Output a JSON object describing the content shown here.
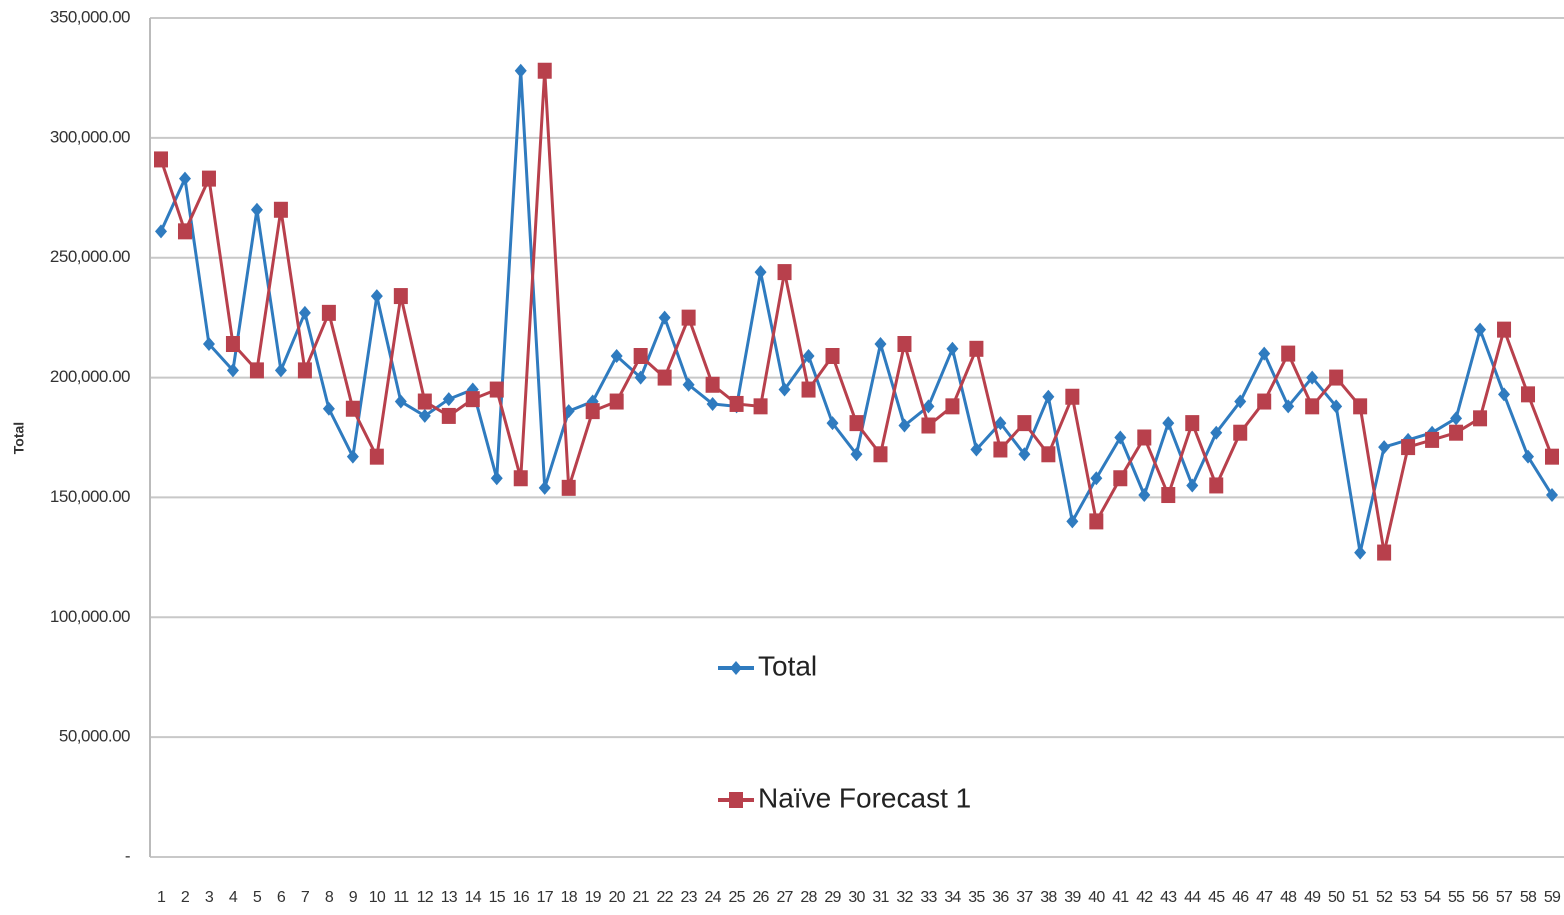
{
  "chart_data": {
    "type": "line",
    "y_label": "Total",
    "categories": [
      "1",
      "2",
      "3",
      "4",
      "5",
      "6",
      "7",
      "8",
      "9",
      "10",
      "11",
      "12",
      "13",
      "14",
      "15",
      "16",
      "17",
      "18",
      "19",
      "20",
      "21",
      "22",
      "23",
      "24",
      "25",
      "26",
      "27",
      "28",
      "29",
      "30",
      "31",
      "32",
      "33",
      "34",
      "35",
      "36",
      "37",
      "38",
      "39",
      "40",
      "41",
      "42",
      "43",
      "44",
      "45",
      "46",
      "47",
      "48",
      "49",
      "50",
      "51",
      "52",
      "53",
      "54",
      "55",
      "56",
      "57",
      "58",
      "59"
    ],
    "series": [
      {
        "name": "Total",
        "color": "#2f7bbf",
        "marker": "diamond",
        "values": [
          261000,
          283000,
          214000,
          203000,
          270000,
          203000,
          227000,
          187000,
          167000,
          234000,
          190000,
          184000,
          191000,
          195000,
          158000,
          328000,
          154000,
          186000,
          190000,
          209000,
          200000,
          225000,
          197000,
          189000,
          188000,
          244000,
          195000,
          209000,
          181000,
          168000,
          214000,
          180000,
          188000,
          212000,
          170000,
          181000,
          168000,
          192000,
          140000,
          158000,
          175000,
          151000,
          181000,
          155000,
          177000,
          190000,
          210000,
          188000,
          200000,
          188000,
          127000,
          171000,
          174000,
          177000,
          183000,
          220000,
          193000,
          167000,
          151000
        ]
      },
      {
        "name": "Naïve Forecast 1",
        "color": "#b8404c",
        "marker": "square",
        "values": [
          291000,
          261000,
          283000,
          214000,
          203000,
          270000,
          203000,
          227000,
          187000,
          167000,
          234000,
          190000,
          184000,
          191000,
          195000,
          158000,
          328000,
          154000,
          186000,
          190000,
          209000,
          200000,
          225000,
          197000,
          189000,
          188000,
          244000,
          195000,
          209000,
          181000,
          168000,
          214000,
          180000,
          188000,
          212000,
          170000,
          181000,
          168000,
          192000,
          140000,
          158000,
          175000,
          151000,
          181000,
          155000,
          177000,
          190000,
          210000,
          188000,
          200000,
          188000,
          127000,
          171000,
          174000,
          177000,
          183000,
          220000,
          193000,
          167000
        ]
      }
    ],
    "ylim": [
      0,
      350000
    ],
    "yticks": [
      {
        "value": 0,
        "label": "-"
      },
      {
        "value": 50000,
        "label": "50,000.00"
      },
      {
        "value": 100000,
        "label": "100,000.00"
      },
      {
        "value": 150000,
        "label": "150,000.00"
      },
      {
        "value": 200000,
        "label": "200,000.00"
      },
      {
        "value": 250000,
        "label": "250,000.00"
      },
      {
        "value": 300000,
        "label": "300,000.00"
      },
      {
        "value": 350000,
        "label": "350,000.00"
      }
    ],
    "grid": true
  }
}
